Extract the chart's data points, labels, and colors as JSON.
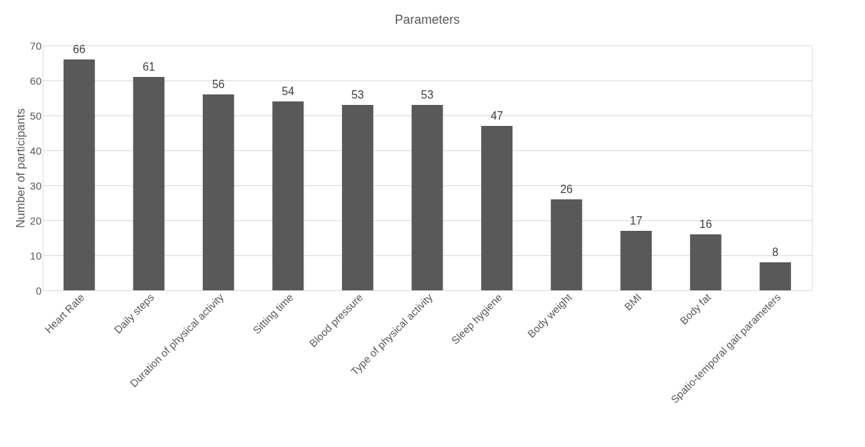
{
  "chart_data": {
    "type": "bar",
    "title": "Parameters",
    "ylabel": "Number of participants",
    "categories": [
      "Heart Rate",
      "Daily steps",
      "Duration of physical activity",
      "Sitting time",
      "Blood pressure",
      "Type of physical activity",
      "Sleep hygiene",
      "Body weight",
      "BMI",
      "Body fat",
      "Spatio-temporal gait parameters"
    ],
    "values": [
      66,
      61,
      56,
      54,
      53,
      53,
      47,
      26,
      17,
      16,
      8
    ],
    "color": "#595959",
    "ylim": [
      0,
      70
    ],
    "yticks": [
      0,
      10,
      20,
      30,
      40,
      50,
      60,
      70
    ],
    "grid": "y",
    "data_labels": true
  }
}
